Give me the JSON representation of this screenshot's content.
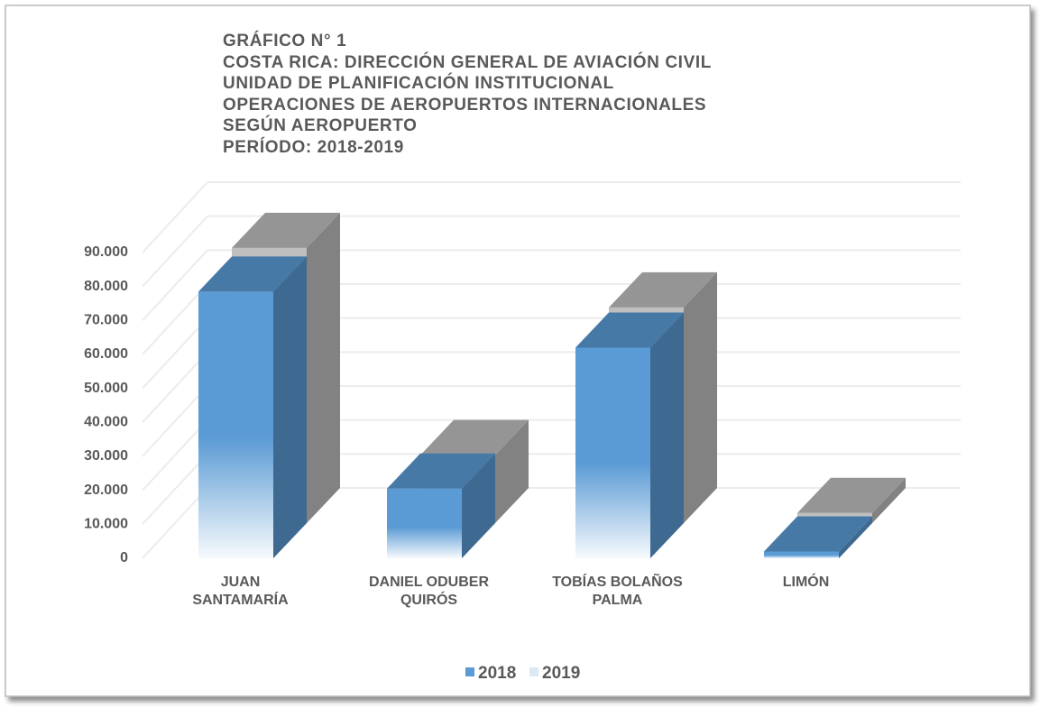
{
  "chart_data": {
    "type": "bar3d",
    "title": [
      "GRÁFICO N° 1",
      "COSTA RICA: DIRECCIÓN GENERAL DE AVIACIÓN CIVIL",
      "UNIDAD DE PLANIFICACIÓN INSTITUCIONAL",
      "OPERACIONES DE AEROPUERTOS  INTERNACIONALES",
      "SEGÚN AEROPUERTO",
      "PERÍODO: 2018-2019"
    ],
    "categories": [
      "JUAN SANTAMARÍA",
      "DANIEL ODUBER QUIRÓS",
      "TOBÍAS BOLAÑOS PALMA",
      "LIMÓN"
    ],
    "series": [
      {
        "name": "2018",
        "color": "#5b9bd5",
        "values": [
          78500,
          20500,
          62000,
          2000
        ]
      },
      {
        "name": "2019",
        "color": "#bfbfbf",
        "values": [
          81000,
          20000,
          63500,
          3000
        ]
      }
    ],
    "ylim": [
      0,
      90000
    ],
    "yticks": [
      0,
      {
        "value": 10000,
        "label": "10.000"
      },
      {
        "value": 20000,
        "label": "20.000"
      },
      {
        "value": 30000,
        "label": "30.000"
      },
      {
        "value": 40000,
        "label": "40.000"
      },
      {
        "value": 50000,
        "label": "50.000"
      },
      {
        "value": 60000,
        "label": "60.000"
      },
      {
        "value": 70000,
        "label": "70.000"
      },
      {
        "value": 80000,
        "label": "80.000"
      },
      {
        "value": 90000,
        "label": "90.000"
      }
    ],
    "grid": true,
    "legend": "bottom"
  }
}
